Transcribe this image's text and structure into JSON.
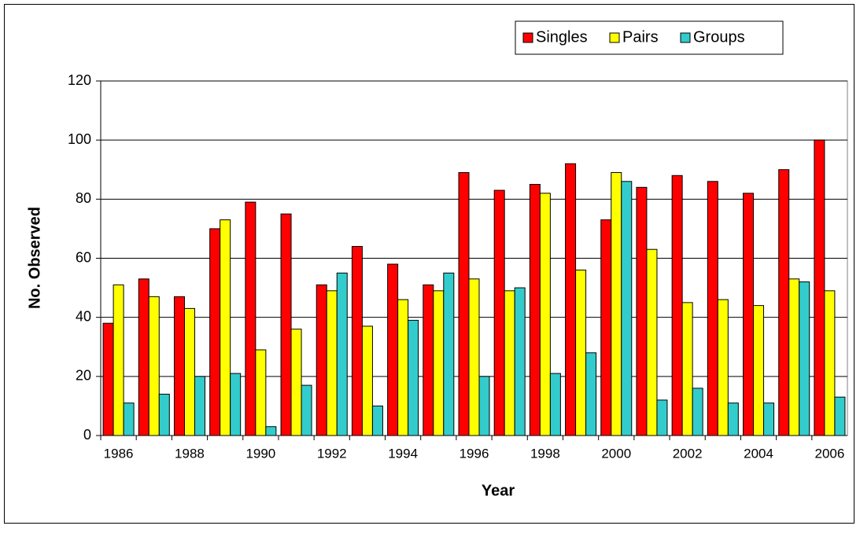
{
  "chart_data": {
    "type": "bar",
    "x_label": "Year",
    "y_label": "No. Observed",
    "categories": [
      "1986",
      null,
      "1988",
      null,
      "1990",
      null,
      "1992",
      null,
      "1994",
      null,
      "1996",
      null,
      "1998",
      null,
      "2000",
      null,
      "2002",
      null,
      "2004",
      null,
      "2006"
    ],
    "series": [
      {
        "name": "Singles",
        "color": "#ff0000",
        "values": [
          38,
          53,
          47,
          70,
          79,
          75,
          51,
          64,
          58,
          51,
          89,
          83,
          85,
          92,
          73,
          84,
          88,
          86,
          82,
          90,
          100
        ]
      },
      {
        "name": "Pairs",
        "color": "#ffff00",
        "values": [
          51,
          47,
          43,
          73,
          29,
          36,
          49,
          37,
          46,
          49,
          53,
          49,
          82,
          56,
          89,
          63,
          45,
          46,
          44,
          53,
          49
        ]
      },
      {
        "name": "Groups",
        "color": "#33cccc",
        "values": [
          11,
          14,
          20,
          21,
          3,
          17,
          55,
          10,
          39,
          55,
          20,
          50,
          21,
          28,
          86,
          12,
          16,
          11,
          11,
          52,
          13
        ]
      }
    ],
    "ylim": [
      0,
      120
    ],
    "yticks": [
      0,
      20,
      40,
      60,
      80,
      100,
      120
    ],
    "grid": true,
    "legend": "top-right"
  }
}
